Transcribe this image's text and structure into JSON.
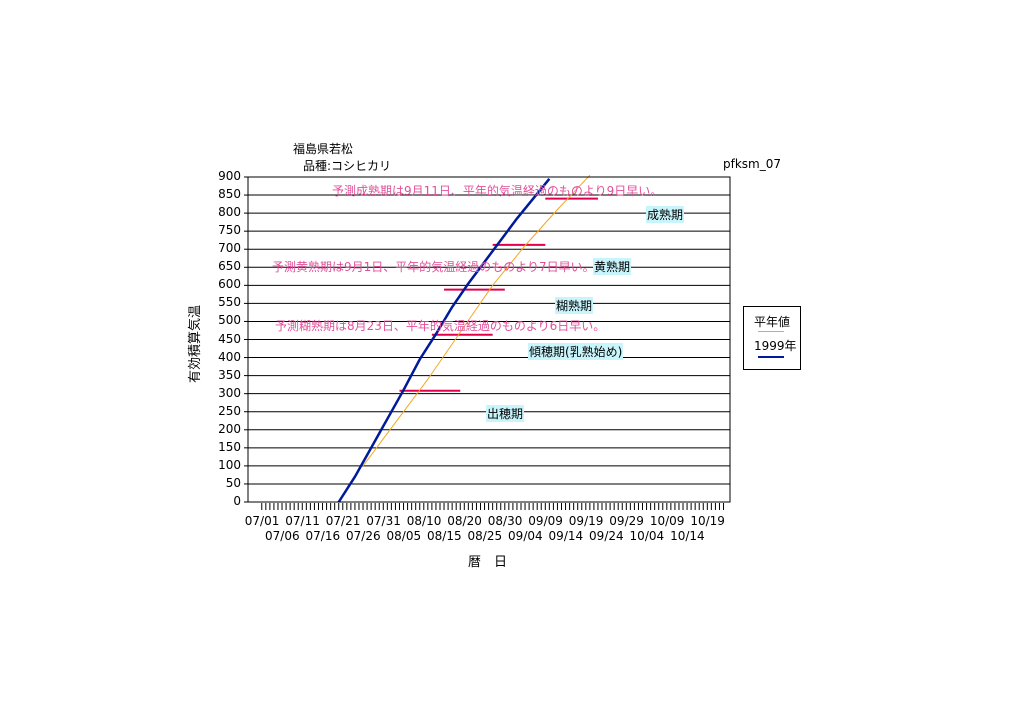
{
  "header": {
    "location": "福島県若松",
    "variety": "品種:コシヒカリ",
    "code": "pfksm_07"
  },
  "chart_data": {
    "type": "line",
    "xlabel": "暦　日",
    "ylabel": "有効積算気温",
    "ylim": [
      0,
      900
    ],
    "yticks": [
      0,
      50,
      100,
      150,
      200,
      250,
      300,
      350,
      400,
      450,
      500,
      550,
      600,
      650,
      700,
      750,
      800,
      850,
      900
    ],
    "grid": true,
    "legend_placement": "right",
    "x_start": "07/01",
    "x_end": "10/19",
    "xtick_labels_top": [
      "07/01",
      "07/11",
      "07/21",
      "07/31",
      "08/10",
      "08/20",
      "08/30",
      "09/09",
      "09/19",
      "09/29",
      "10/09",
      "10/19"
    ],
    "xtick_labels_bottom": [
      "07/06",
      "07/16",
      "07/26",
      "08/05",
      "08/15",
      "08/25",
      "09/04",
      "09/14",
      "09/24",
      "10/04",
      "10/14"
    ],
    "series": [
      {
        "name": "平年値",
        "color": "#f5a623",
        "x": [
          "07/26",
          "08/03",
          "08/11",
          "08/19",
          "08/27",
          "09/04",
          "09/12",
          "09/20"
        ],
        "y": [
          100,
          220,
          340,
          470,
          600,
          710,
          810,
          905
        ]
      },
      {
        "name": "1999年",
        "color": "#001a99",
        "x": [
          "07/20",
          "07/24",
          "07/28",
          "08/01",
          "08/05",
          "08/09",
          "08/13",
          "08/17",
          "08/21",
          "08/25",
          "08/29",
          "09/02",
          "09/06",
          "09/10"
        ],
        "y": [
          0,
          70,
          150,
          230,
          310,
          395,
          465,
          540,
          605,
          665,
          725,
          785,
          840,
          895
        ]
      }
    ],
    "stage_markers": [
      {
        "date_start": "08/04",
        "date_end": "08/19",
        "y": 308
      },
      {
        "date_start": "08/12",
        "date_end": "08/27",
        "y": 463
      },
      {
        "date_start": "08/15",
        "date_end": "08/30",
        "y": 588
      },
      {
        "date_start": "08/27",
        "date_end": "09/09",
        "y": 712
      },
      {
        "date_start": "09/09",
        "date_end": "09/22",
        "y": 840
      }
    ],
    "stage_labels": [
      "出穂期",
      "傾穂期(乳熟始め)",
      "糊熟期",
      "黄熟期",
      "成熟期"
    ],
    "annotations": [
      "予測成熟期は9月11日、平年的気温経過のものより9日早い。",
      "予測黄熟期は9月1日、平年的気温経過のものより7日早い。",
      "予測糊熟期は8月23日、平年的気温経過のものより6日早い。"
    ]
  }
}
